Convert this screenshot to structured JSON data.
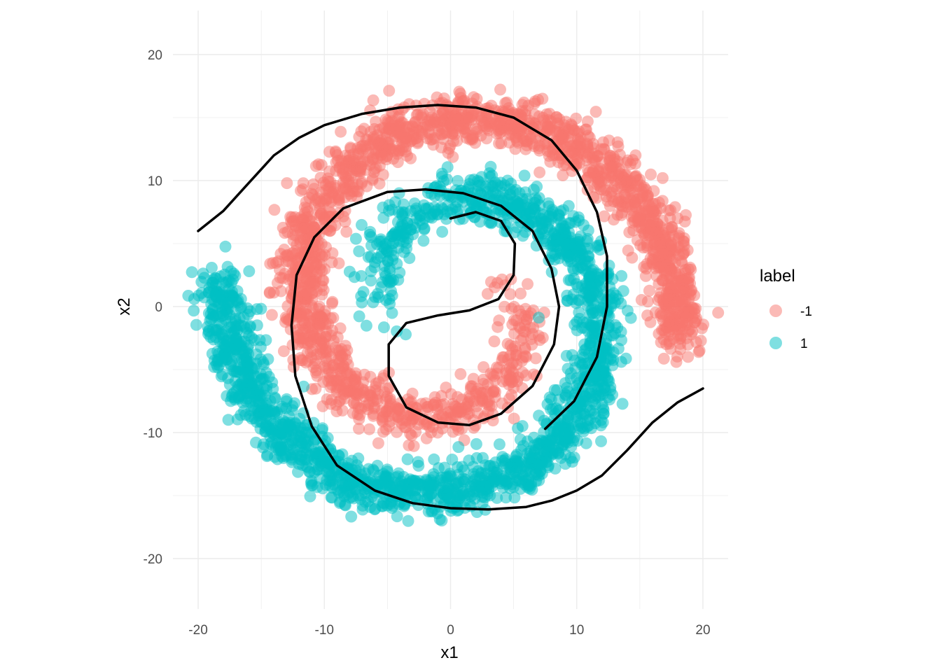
{
  "chart_data": {
    "type": "scatter",
    "title": "",
    "xlabel": "x1",
    "ylabel": "x2",
    "xlim": [
      -22,
      22
    ],
    "ylim": [
      -24,
      23.5
    ],
    "x_ticks": [
      -20,
      -10,
      0,
      10,
      20
    ],
    "y_ticks": [
      -20,
      -10,
      0,
      10,
      20
    ],
    "x_tick_labels": [
      "-20",
      "-10",
      "0",
      "10",
      "20"
    ],
    "y_tick_labels": [
      "-20",
      "-10",
      "0",
      "10",
      "20"
    ],
    "grid": true,
    "legend": {
      "title": "label",
      "position": "right",
      "entries": [
        {
          "label": "-1",
          "color": "#F8766D"
        },
        {
          "label": "1",
          "color": "#00BFC4"
        }
      ]
    },
    "series": [
      {
        "name": "-1",
        "color": "#F8766D",
        "point_opacity": 0.5,
        "spiral": {
          "arm_angle_offset_rad": 0,
          "radius_per_rad": 1.0,
          "theta_start_rad": 2.2,
          "theta_end_rad": 9.1,
          "noise_sd": 1.0,
          "n_points": 2000
        },
        "notes_range_x": [
          -20,
          20
        ],
        "notes_range_y": [
          -16,
          21
        ]
      },
      {
        "name": "1",
        "color": "#00BFC4",
        "point_opacity": 0.5,
        "spiral": {
          "arm_angle_offset_rad": 3.14159,
          "radius_per_rad": 1.0,
          "theta_start_rad": 2.2,
          "theta_end_rad": 9.1,
          "noise_sd": 1.0,
          "n_points": 2000
        },
        "notes_range_x": [
          -20,
          20
        ],
        "notes_range_y": [
          -22,
          15
        ]
      }
    ],
    "decision_boundary": {
      "color": "#000000",
      "points": [
        [
          20,
          -6.5
        ],
        [
          18,
          -7.6
        ],
        [
          16,
          -9.2
        ],
        [
          14,
          -11.4
        ],
        [
          12,
          -13.4
        ],
        [
          10,
          -14.6
        ],
        [
          8,
          -15.4
        ],
        [
          6,
          -15.9
        ],
        [
          3,
          -16.1
        ],
        [
          0,
          -16.0
        ],
        [
          -3,
          -15.6
        ],
        [
          -6,
          -14.6
        ],
        [
          -9,
          -12.6
        ],
        [
          -11,
          -9.5
        ],
        [
          -12.3,
          -5.5
        ],
        [
          -12.6,
          -1.5
        ],
        [
          -12.2,
          2.5
        ],
        [
          -10.8,
          5.5
        ],
        [
          -8.5,
          7.8
        ],
        [
          -5,
          9.1
        ],
        [
          -2,
          9.3
        ],
        [
          1,
          9.0
        ],
        [
          4,
          8.0
        ],
        [
          6.5,
          6.0
        ],
        [
          8.0,
          3.0
        ],
        [
          8.6,
          0
        ],
        [
          8.2,
          -3.0
        ],
        [
          6.5,
          -6.3
        ],
        [
          4,
          -8.5
        ],
        [
          1.5,
          -9.4
        ],
        [
          -1,
          -9.2
        ],
        [
          -3.5,
          -8.0
        ],
        [
          -4.9,
          -5.5
        ],
        [
          -4.9,
          -3.0
        ],
        [
          -3.5,
          -1.3
        ],
        [
          -1,
          -0.7
        ],
        [
          1.5,
          -0.3
        ],
        [
          3.8,
          0.6
        ],
        [
          5,
          2.5
        ],
        [
          5.1,
          5.0
        ],
        [
          4,
          6.8
        ],
        [
          2,
          7.5
        ],
        [
          0,
          7.0
        ]
      ],
      "outer_points": [
        [
          -20,
          6.0
        ],
        [
          -18,
          7.6
        ],
        [
          -16,
          9.8
        ],
        [
          -14,
          12.0
        ],
        [
          -12,
          13.4
        ],
        [
          -10,
          14.4
        ],
        [
          -7,
          15.3
        ],
        [
          -4,
          15.8
        ],
        [
          -1,
          16.0
        ],
        [
          2,
          15.8
        ],
        [
          5,
          15.0
        ],
        [
          8,
          13.2
        ],
        [
          10,
          10.8
        ],
        [
          11.6,
          7.5
        ],
        [
          12.4,
          4.0
        ],
        [
          12.4,
          0
        ],
        [
          11.6,
          -4.0
        ],
        [
          9.8,
          -7.5
        ],
        [
          7.5,
          -9.7
        ]
      ]
    }
  }
}
